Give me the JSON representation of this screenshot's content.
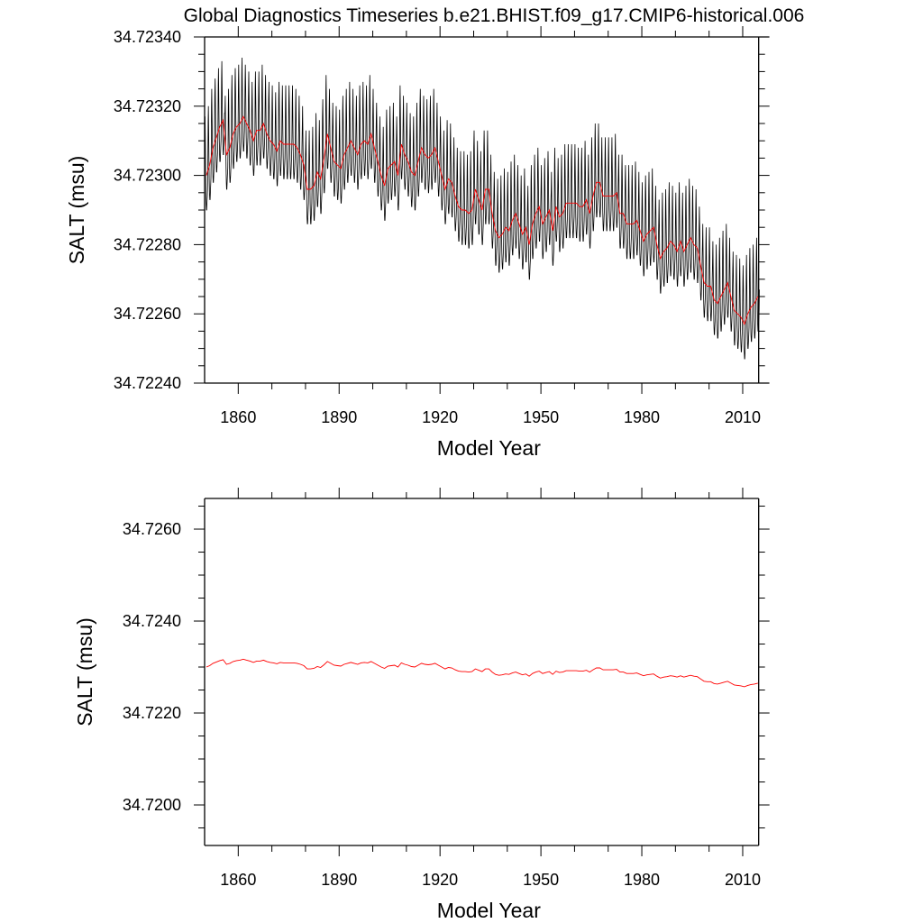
{
  "chart_data": [
    {
      "type": "line",
      "title": "Global Diagnostics Timeseries b.e21.BHIST.f09_g17.CMIP6-historical.006",
      "xlabel": "Model Year",
      "ylabel": "SALT (msu)",
      "xlim": [
        1850,
        2014.75
      ],
      "ylim": [
        34.7224,
        34.7234
      ],
      "x_ticks": [
        "1860",
        "1890",
        "1920",
        "1950",
        "1980",
        "2010"
      ],
      "y_ticks": [
        "34.72240",
        "34.72260",
        "34.72280",
        "34.72300",
        "34.72320",
        "34.72340"
      ],
      "grid": false,
      "colors": {
        "monthly": "#000000",
        "annual": "#ff0000"
      },
      "start_year": 1850,
      "seasonal_cycle": [
        0.00012,
        0.00017,
        0.0001,
        2e-05,
        -4e-05,
        -8e-05,
        -0.0001,
        -0.0001,
        -8e-05,
        -6e-05,
        -4e-05,
        2e-05
      ],
      "annual_mean": [
        34.723,
        34.72303,
        34.72308,
        34.72311,
        34.72314,
        34.72316,
        34.72306,
        34.72308,
        34.72312,
        34.72314,
        34.72315,
        34.72317,
        34.72315,
        34.72313,
        34.7231,
        34.72313,
        34.72313,
        34.72315,
        34.72312,
        34.7231,
        34.72309,
        34.72307,
        34.7231,
        34.72309,
        34.72309,
        34.72309,
        34.72309,
        34.72308,
        34.72306,
        34.72303,
        34.72296,
        34.72296,
        34.72297,
        34.72301,
        34.72299,
        34.72305,
        34.72312,
        34.72308,
        34.72304,
        34.72303,
        34.72302,
        34.72306,
        34.72308,
        34.7231,
        34.72308,
        34.72306,
        34.72309,
        34.7231,
        34.72309,
        34.72312,
        34.72308,
        34.72304,
        34.723,
        34.72297,
        34.72302,
        34.72303,
        34.72304,
        34.723,
        34.72309,
        34.72306,
        34.72304,
        34.72301,
        34.723,
        34.72304,
        34.72308,
        34.72306,
        34.72305,
        34.72306,
        34.72308,
        34.72304,
        34.723,
        34.72296,
        34.72299,
        34.72298,
        34.72294,
        34.72291,
        34.7229,
        34.7229,
        34.72289,
        34.7229,
        34.72296,
        34.72293,
        34.7229,
        34.72296,
        34.72296,
        34.72289,
        34.72284,
        34.72282,
        34.72283,
        34.72285,
        34.72284,
        34.72287,
        34.72289,
        34.72286,
        34.72283,
        34.72285,
        34.7228,
        34.72286,
        34.72289,
        34.72291,
        34.72286,
        34.72288,
        34.7229,
        34.72284,
        34.72291,
        34.72288,
        34.72289,
        34.72292,
        34.72292,
        34.72292,
        34.72292,
        34.72291,
        34.72291,
        34.72293,
        34.72289,
        34.72294,
        34.72298,
        34.72298,
        34.72294,
        34.72294,
        34.72294,
        34.72294,
        34.72295,
        34.72289,
        34.72289,
        34.72286,
        34.72286,
        34.72286,
        34.72287,
        34.72284,
        34.72281,
        34.72283,
        34.72284,
        34.72285,
        34.7228,
        34.72276,
        34.72278,
        34.72279,
        34.72281,
        34.7228,
        34.72278,
        34.72281,
        34.72278,
        34.7228,
        34.72282,
        34.7228,
        34.72279,
        34.72274,
        34.72269,
        34.72268,
        34.72268,
        34.72264,
        34.72263,
        34.72265,
        34.72267,
        34.72269,
        34.72265,
        34.72261,
        34.7226,
        34.72259,
        34.72257,
        34.7226,
        34.72262,
        34.72263,
        34.72265
      ]
    },
    {
      "type": "line",
      "xlabel": "Model Year",
      "ylabel": "SALT (msu)",
      "xlim": [
        1850,
        2014.75
      ],
      "ylim": [
        34.719118,
        34.726667
      ],
      "x_ticks": [
        "1860",
        "1890",
        "1920",
        "1950",
        "1980",
        "2010"
      ],
      "y_ticks": [
        "34.7200",
        "34.7220",
        "34.7240",
        "34.7260"
      ],
      "grid": false,
      "colors": {
        "annual": "#ff0000"
      },
      "series_source": "annual_mean of panel 1"
    }
  ]
}
